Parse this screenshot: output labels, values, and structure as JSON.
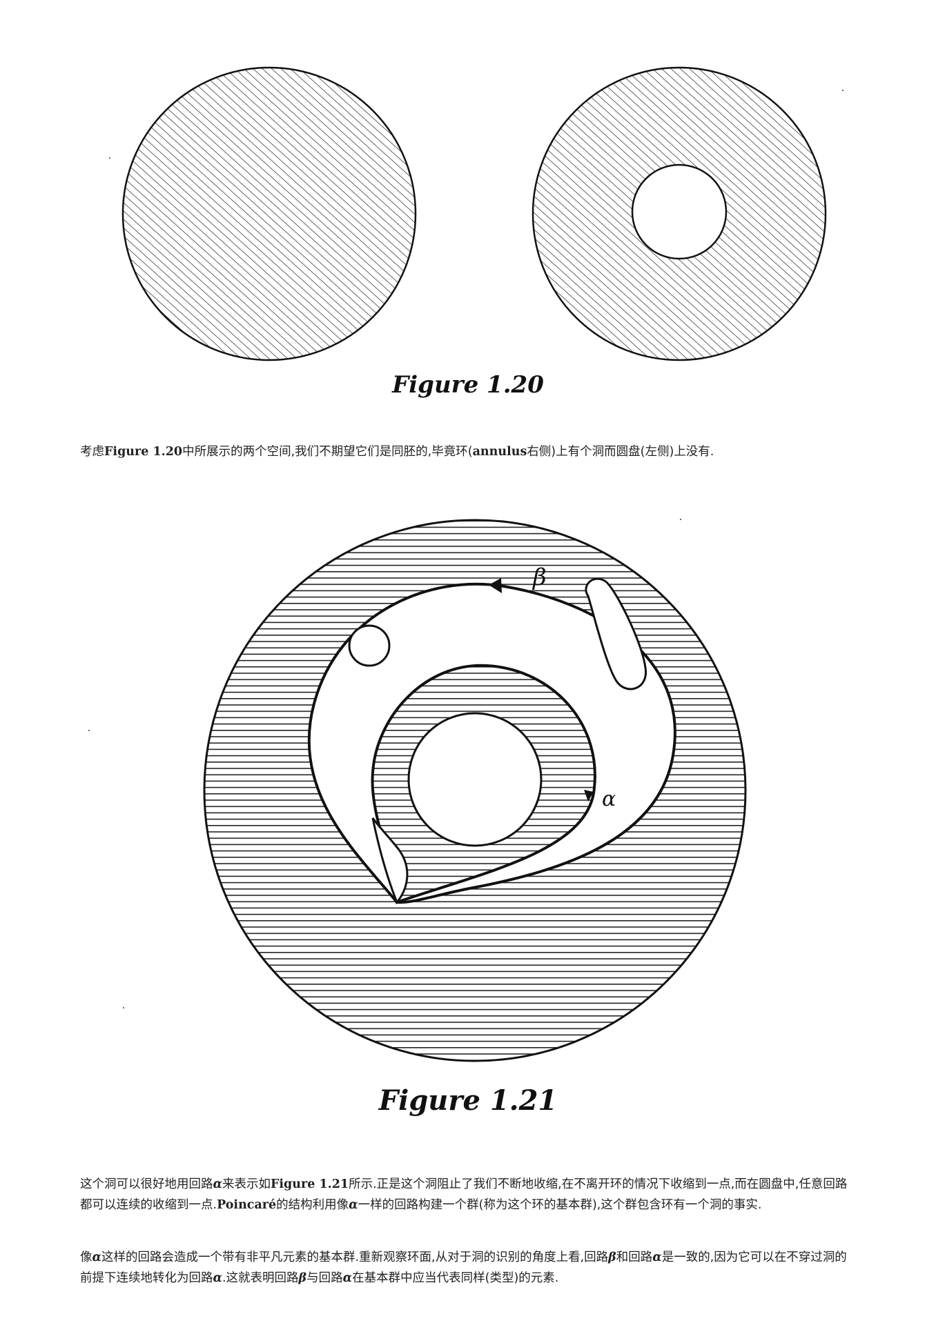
{
  "figure_1_20": {
    "caption": "Figure 1.20"
  },
  "figure_1_21": {
    "caption": "Figure 1.21",
    "label_beta": "β",
    "label_alpha": "α"
  },
  "para1": {
    "t1": "考虑",
    "ref": "Figure 1.20",
    "t2": "中所展示的两个空间,我们不期望它们是同胚的,毕竟环(",
    "term": "annulus",
    "t3": "右侧)上有个洞而圆盘(左侧)上没有."
  },
  "para2": {
    "t1": "这个洞可以很好地用回路",
    "alpha": "α",
    "t2": "来表示如",
    "ref": "Figure 1.21",
    "t3": "所示.正是这个洞阻止了我们不断地收缩,在不离开环的情况下收缩到一点,而在圆盘中,任意回路都可以连续的收缩到一点.",
    "name": "Poincaré",
    "t4": "的结构利用像",
    "alpha2": "α",
    "t5": "一样的回路构建一个群(称为这个环的基本群),这个群包含环有一个洞的事实."
  },
  "para3": {
    "t1": "像",
    "alpha": "α",
    "t2": "这样的回路会造成一个带有非平凡元素的基本群.重新观察环面,从对于洞的识别的角度上看,回路",
    "beta": "β",
    "t3": "和回路",
    "alpha2": "α",
    "t4": "是一致的,因为它可以在不穿过洞的前提下连续地转化为回路",
    "alpha3": "α",
    "t5": ".这就表明回路",
    "beta2": "β",
    "t6": "与回路",
    "alpha4": "α",
    "t7": "在基本群中应当代表同样(类型)的元素."
  }
}
